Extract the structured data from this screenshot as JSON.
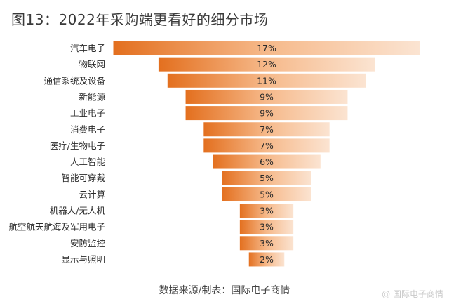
{
  "title": "图13：2022年采购端更看好的细分市场",
  "source_note": "数据来源/制表：国际电子商情",
  "watermark": "@ 国际电子商情",
  "colors": {
    "dark": "#E36F1E",
    "light": "#FBE4D2",
    "label": "#2b2b2b",
    "bar_edge": "#ffffff"
  },
  "chart_data": {
    "type": "bar",
    "orientation": "horizontal-funnel",
    "categories": [
      "汽车电子",
      "物联网",
      "通信系统及设备",
      "新能源",
      "工业电子",
      "消费电子",
      "医疗/生物电子",
      "人工智能",
      "智能可穿戴",
      "云计算",
      "机器人/无人机",
      "航空航天航海及军用电子",
      "安防监控",
      "显示与照明"
    ],
    "values": [
      17,
      12,
      11,
      9,
      9,
      7,
      7,
      6,
      5,
      5,
      3,
      3,
      3,
      2
    ],
    "value_labels": [
      "17%",
      "12%",
      "11%",
      "9%",
      "9%",
      "7%",
      "7%",
      "6%",
      "5%",
      "5%",
      "3%",
      "3%",
      "3%",
      "2%"
    ],
    "unit": "%",
    "title": "图13：2022年采购端更看好的细分市场",
    "xlabel": "",
    "ylabel": "",
    "grid": false,
    "legend": "none"
  }
}
